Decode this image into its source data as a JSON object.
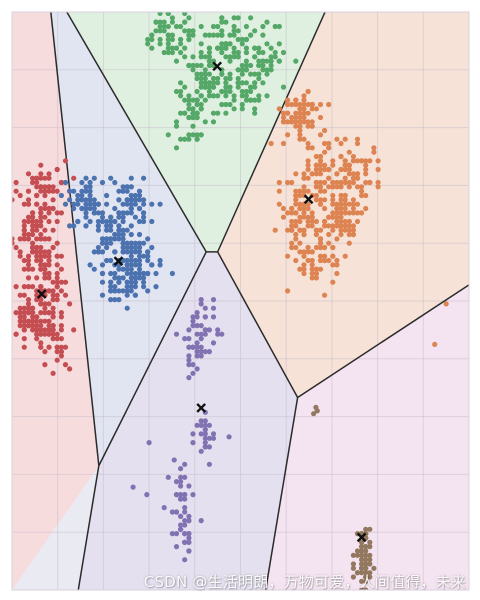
{
  "chart_data": {
    "type": "scatter",
    "title": "",
    "xlabel": "",
    "ylabel": "",
    "xlim": [
      0,
      100
    ],
    "ylim": [
      0,
      100
    ],
    "grid": true,
    "legend": "none",
    "background": "#eaeaf2",
    "regions": [
      {
        "cluster": 1,
        "fill": "#f6dcdc",
        "polygon": [
          [
            0,
            0
          ],
          [
            0,
            100
          ],
          [
            8.5,
            100
          ],
          [
            19.0,
            21.5
          ]
        ]
      },
      {
        "cluster": 2,
        "fill": "#e0e5f1",
        "polygon": [
          [
            8.5,
            100
          ],
          [
            12.0,
            100
          ],
          [
            42.5,
            58.5
          ],
          [
            19.0,
            21.5
          ]
        ]
      },
      {
        "cluster": 3,
        "fill": "#dff0e1",
        "polygon": [
          [
            12.0,
            100
          ],
          [
            68.5,
            100
          ],
          [
            45.0,
            58.5
          ],
          [
            42.5,
            58.5
          ]
        ]
      },
      {
        "cluster": 4,
        "fill": "#f6e2d6",
        "polygon": [
          [
            68.5,
            100
          ],
          [
            100,
            100
          ],
          [
            100,
            52.8
          ],
          [
            62.5,
            33.3
          ],
          [
            45.0,
            58.5
          ]
        ]
      },
      {
        "cluster": 5,
        "fill": "#e4e0ef",
        "polygon": [
          [
            42.5,
            58.5
          ],
          [
            45.0,
            58.5
          ],
          [
            62.5,
            33.3
          ],
          [
            55.5,
            0
          ],
          [
            14.5,
            0
          ],
          [
            19.0,
            21.5
          ]
        ]
      },
      {
        "cluster": 6,
        "fill": "#f4e3f0",
        "polygon": [
          [
            62.5,
            33.3
          ],
          [
            100,
            52.8
          ],
          [
            100,
            0
          ],
          [
            55.5,
            0
          ]
        ]
      }
    ],
    "boundaries": [
      [
        [
          8.5,
          100
        ],
        [
          19.0,
          21.5
        ]
      ],
      [
        [
          19.0,
          21.5
        ],
        [
          14.5,
          0
        ]
      ],
      [
        [
          12.0,
          100
        ],
        [
          42.5,
          58.5
        ]
      ],
      [
        [
          42.5,
          58.5
        ],
        [
          19.0,
          21.5
        ]
      ],
      [
        [
          42.5,
          58.5
        ],
        [
          45.0,
          58.5
        ]
      ],
      [
        [
          45.0,
          58.5
        ],
        [
          68.5,
          100
        ]
      ],
      [
        [
          45.0,
          58.5
        ],
        [
          62.5,
          33.3
        ]
      ],
      [
        [
          62.5,
          33.3
        ],
        [
          100,
          52.8
        ]
      ],
      [
        [
          62.5,
          33.3
        ],
        [
          55.5,
          0
        ]
      ]
    ],
    "series": [
      {
        "color": "#c44e52",
        "n": 330,
        "blobs": [
          [
            6.5,
            69
          ],
          [
            5.5,
            61
          ],
          [
            7.5,
            54
          ],
          [
            4,
            48
          ],
          [
            8,
            44
          ]
        ],
        "spread": [
          4.2,
          5.8
        ]
      },
      {
        "color": "#4c72b0",
        "n": 300,
        "blobs": [
          [
            16,
            67
          ],
          [
            26,
            67
          ],
          [
            22,
            61
          ],
          [
            24,
            54
          ],
          [
            28,
            57
          ]
        ],
        "spread": [
          4.5,
          4.2
        ]
      },
      {
        "color": "#55a868",
        "n": 360,
        "blobs": [
          [
            35,
            96
          ],
          [
            47,
            95
          ],
          [
            42,
            89
          ],
          [
            50,
            87
          ],
          [
            40,
            82
          ],
          [
            55,
            92
          ]
        ],
        "spread": [
          4.8,
          4.2
        ]
      },
      {
        "color": "#dd8452",
        "n": 420,
        "blobs": [
          [
            63,
            82
          ],
          [
            68,
            72
          ],
          [
            63,
            66
          ],
          [
            72,
            64
          ],
          [
            66,
            58
          ],
          [
            75,
            72
          ]
        ],
        "spread": [
          4.5,
          4.8
        ]
      },
      {
        "color": "#8172b2",
        "n": 130,
        "blobs": [
          [
            42,
            46
          ],
          [
            40,
            42
          ],
          [
            42,
            27
          ],
          [
            37,
            16
          ],
          [
            38,
            10
          ]
        ],
        "spread": [
          2.5,
          3.8
        ]
      },
      {
        "color": "#937860",
        "n": 70,
        "blobs": [
          [
            77,
            8
          ],
          [
            77,
            3
          ]
        ],
        "spread": [
          1.6,
          3.2
        ]
      }
    ],
    "outliers": [
      {
        "series": 5,
        "points": [
          [
            66.5,
            31.6
          ],
          [
            66.0,
            30.5
          ],
          [
            66.8,
            31.0
          ]
        ]
      },
      {
        "series": 3,
        "points": [
          [
            92.5,
            42.5
          ],
          [
            95.0,
            49.5
          ]
        ]
      },
      {
        "series": 4,
        "points": [
          [
            26.5,
            17.8
          ],
          [
            29.5,
            16.5
          ],
          [
            30.0,
            25.5
          ],
          [
            47.5,
            26.5
          ],
          [
            35.5,
            22.5
          ]
        ]
      }
    ],
    "centroids": [
      {
        "series": 0,
        "x": 6.5,
        "y": 51.2
      },
      {
        "series": 1,
        "x": 23.3,
        "y": 56.9
      },
      {
        "series": 2,
        "x": 44.9,
        "y": 90.6
      },
      {
        "series": 3,
        "x": 64.9,
        "y": 67.6
      },
      {
        "series": 4,
        "x": 41.4,
        "y": 31.5
      },
      {
        "series": 5,
        "x": 76.5,
        "y": 9.1
      }
    ]
  },
  "watermark": "CSDN @生活明朗，万物可爱，人间值得，未来"
}
